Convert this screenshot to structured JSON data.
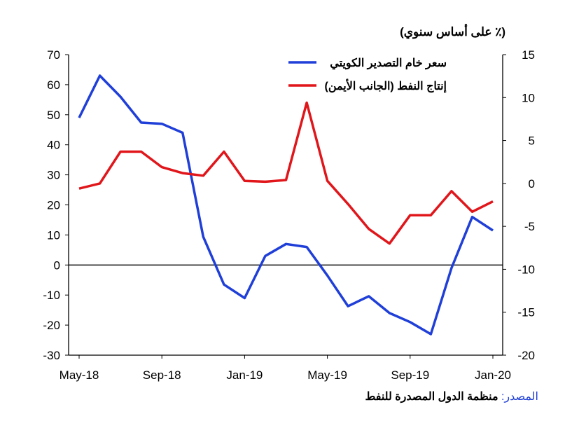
{
  "chart_data": {
    "type": "line",
    "title": "",
    "unit_label": "(٪ على أساس سنوي)",
    "x": [
      "May-18",
      "Jun-18",
      "Jul-18",
      "Aug-18",
      "Sep-18",
      "Oct-18",
      "Nov-18",
      "Dec-18",
      "Jan-19",
      "Feb-19",
      "Mar-19",
      "Apr-19",
      "May-19",
      "Jun-19",
      "Jul-19",
      "Aug-19",
      "Sep-19",
      "Oct-19",
      "Nov-19",
      "Dec-19",
      "Jan-20"
    ],
    "x_tick_labels": [
      "May-18",
      "Sep-18",
      "Jan-19",
      "May-19",
      "Sep-19",
      "Jan-20"
    ],
    "left_axis": {
      "ylim": [
        -30,
        70
      ],
      "ticks": [
        70,
        60,
        50,
        40,
        30,
        20,
        10,
        0,
        -10,
        -20,
        -30
      ]
    },
    "right_axis": {
      "ylim": [
        -20,
        15
      ],
      "ticks": [
        15,
        10,
        5,
        0,
        -5,
        -10,
        -15,
        -20
      ]
    },
    "series": [
      {
        "name": "سعر خام التصدير الكويتي",
        "axis": "left",
        "color": "#1f3fd8",
        "values": [
          49,
          63,
          56,
          47.4,
          47,
          44,
          9.4,
          -6.5,
          -11,
          3,
          7,
          6,
          -3.5,
          -13.7,
          -10.4,
          -16,
          -19,
          -23,
          -1,
          16,
          11.5
        ]
      },
      {
        "name": "إنتاج النفط (الجانب الأيمن)",
        "axis": "right",
        "color": "#e0161b",
        "values": [
          -0.6,
          0,
          3.7,
          3.7,
          1.9,
          1.2,
          0.9,
          3.7,
          0.3,
          0.2,
          0.4,
          9.4,
          0.3,
          -2.4,
          -5.3,
          -7,
          -3.7,
          -3.7,
          -0.9,
          -3.3,
          -2.1
        ]
      }
    ],
    "legend_position": "top-right",
    "grid": false
  },
  "source": {
    "label": "المصدر:",
    "text": "منظمة الدول المصدرة للنفط"
  }
}
